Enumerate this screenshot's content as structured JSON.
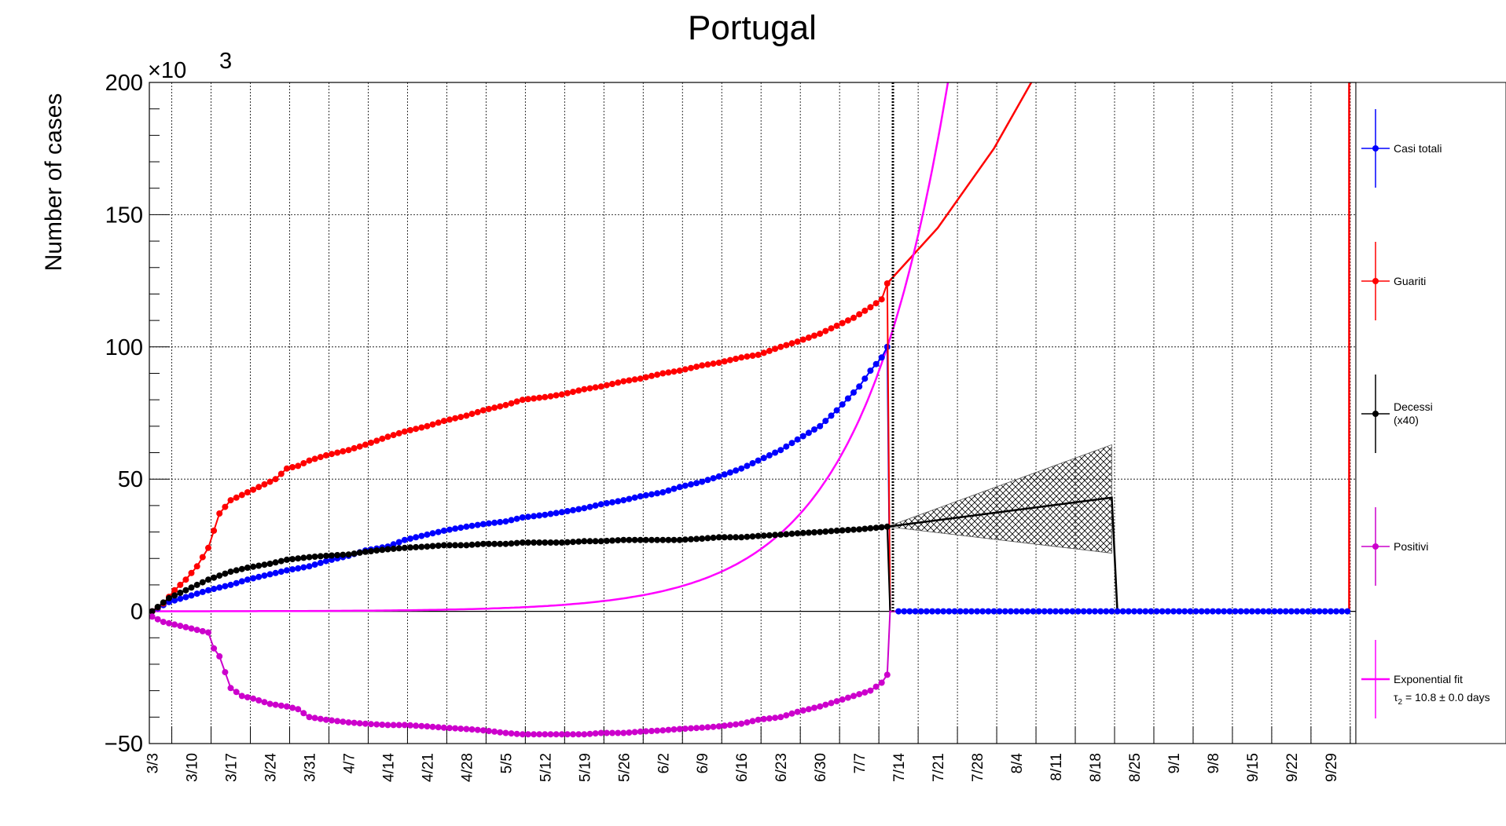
{
  "chart_data": {
    "type": "line",
    "title": "Portugal",
    "ylabel": "Number of cases",
    "xlabel": "",
    "y_multiplier": "×10",
    "y_multiplier_exp": "3",
    "ylim": [
      -50,
      200
    ],
    "yticks": [
      -50,
      0,
      50,
      100,
      150,
      200
    ],
    "xlim": [
      -0.5,
      214.5
    ],
    "grid": true,
    "legend_position": "right",
    "x_categories": [
      "3/3",
      "3/10",
      "3/17",
      "3/24",
      "3/31",
      "4/7",
      "4/14",
      "4/21",
      "4/28",
      "5/5",
      "5/12",
      "5/19",
      "5/26",
      "6/2",
      "6/9",
      "6/16",
      "6/23",
      "6/30",
      "7/7",
      "7/14",
      "7/21",
      "7/28",
      "8/4",
      "8/11",
      "8/18",
      "8/25",
      "9/1",
      "9/8",
      "9/15",
      "9/22",
      "9/29"
    ],
    "x_category_day": [
      0,
      7,
      14,
      21,
      28,
      35,
      42,
      49,
      56,
      63,
      70,
      77,
      84,
      91,
      98,
      105,
      112,
      119,
      126,
      133,
      140,
      147,
      154,
      161,
      168,
      175,
      182,
      189,
      196,
      203,
      210
    ],
    "last_data_day": 131,
    "markers_end_day": 213,
    "series": [
      {
        "name": "Casi totali",
        "color": "#0000ff",
        "x": [
          0,
          3,
          7,
          10,
          14,
          17,
          21,
          24,
          28,
          31,
          35,
          38,
          42,
          45,
          49,
          52,
          56,
          59,
          63,
          66,
          70,
          73,
          77,
          80,
          84,
          87,
          91,
          94,
          98,
          101,
          105,
          108,
          112,
          115,
          119,
          122,
          126,
          128,
          130,
          131
        ],
        "y": [
          0,
          3.5,
          6,
          8,
          10,
          12,
          14,
          15.5,
          17,
          19,
          21,
          23,
          24.5,
          27,
          29,
          30.5,
          32,
          33,
          34,
          35.5,
          36.5,
          37.5,
          39,
          40.5,
          42,
          43.5,
          45,
          47,
          49,
          51,
          54,
          57,
          61,
          65,
          70,
          76,
          85,
          91,
          96,
          100
        ]
      },
      {
        "name": "Guariti",
        "color": "#ff0000",
        "x": [
          0,
          2,
          4,
          6,
          8,
          10,
          12,
          14,
          16,
          18,
          20,
          22,
          24,
          26,
          28,
          31,
          35,
          38,
          42,
          45,
          49,
          52,
          56,
          59,
          63,
          66,
          70,
          73,
          77,
          80,
          84,
          87,
          91,
          94,
          98,
          101,
          105,
          108,
          112,
          115,
          119,
          122,
          125,
          128,
          130,
          131
        ],
        "y": [
          0,
          3,
          8,
          12,
          17,
          24,
          37,
          42,
          44,
          46,
          48,
          50,
          54,
          55,
          57,
          59,
          61,
          63,
          66,
          68,
          70,
          72,
          74,
          76,
          78,
          80,
          81,
          82,
          84,
          85,
          87,
          88,
          90,
          91,
          93,
          94,
          96,
          97,
          100,
          102,
          105,
          108,
          111,
          115,
          118,
          124
        ]
      },
      {
        "name": "Decessi\n(x40)",
        "color": "#000000",
        "x": [
          0,
          3,
          7,
          10,
          14,
          17,
          21,
          24,
          28,
          31,
          35,
          38,
          42,
          45,
          49,
          52,
          56,
          59,
          63,
          66,
          70,
          73,
          77,
          80,
          84,
          87,
          91,
          94,
          98,
          101,
          105,
          108,
          112,
          115,
          119,
          122,
          126,
          131
        ],
        "y": [
          0,
          5,
          9,
          12,
          15,
          16.5,
          18,
          19.5,
          20.5,
          21,
          21.5,
          22.5,
          23.5,
          24,
          24.5,
          25,
          25,
          25.5,
          25.5,
          26,
          26,
          26,
          26.5,
          26.5,
          27,
          27,
          27,
          27,
          27.5,
          28,
          28,
          28.5,
          29,
          29.5,
          30,
          30.5,
          31,
          32
        ]
      },
      {
        "name": "Positivi",
        "color": "#cc00cc",
        "x": [
          0,
          2,
          4,
          6,
          8,
          10,
          11,
          12,
          13,
          14,
          16,
          18,
          21,
          24,
          26,
          28,
          31,
          35,
          38,
          42,
          45,
          49,
          52,
          56,
          59,
          63,
          66,
          70,
          73,
          77,
          80,
          84,
          87,
          91,
          94,
          98,
          101,
          105,
          108,
          112,
          115,
          119,
          122,
          125,
          128,
          130,
          131
        ],
        "y": [
          -2,
          -4,
          -5,
          -6,
          -7,
          -8,
          -14,
          -17,
          -23,
          -29,
          -32,
          -33,
          -35,
          -36,
          -37,
          -40,
          -41,
          -42,
          -42.5,
          -43,
          -43,
          -43.5,
          -44,
          -44.5,
          -45,
          -46,
          -46.5,
          -46.5,
          -46.5,
          -46.5,
          -46,
          -46,
          -45.5,
          -45,
          -44.5,
          -44,
          -43.5,
          -42.5,
          -41,
          -40,
          -38,
          -36,
          -34,
          -32,
          -30,
          -27,
          -24
        ]
      }
    ],
    "fit": {
      "name": "Exponential fit",
      "label_tau": "τ",
      "label_tau_sub": "2",
      "label_rest": " = 10.8  ± 0.0 days",
      "color": "#ff00ff",
      "tau_days": 10.8,
      "anchor_day": 131,
      "anchor_value": 100
    },
    "projection": {
      "color": "#ff0000",
      "points_x": [
        131,
        140,
        150,
        158,
        165,
        170
      ],
      "points_y": [
        124,
        145,
        175,
        205,
        240,
        270
      ]
    },
    "deaths_projection": {
      "x": [
        131,
        171
      ],
      "y": [
        32,
        43
      ],
      "band_upper": [
        32,
        63
      ],
      "band_lower": [
        32,
        22
      ],
      "drop_day": 172
    },
    "vline_day": 132
  }
}
